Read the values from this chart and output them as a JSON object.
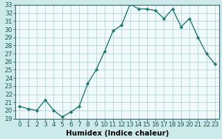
{
  "x": [
    0,
    1,
    2,
    3,
    4,
    5,
    6,
    7,
    8,
    9,
    10,
    11,
    12,
    13,
    14,
    15,
    16,
    17,
    18,
    19,
    20,
    21,
    22,
    23
  ],
  "y": [
    20.5,
    20.2,
    20.0,
    21.3,
    20.0,
    19.2,
    19.8,
    20.5,
    23.3,
    25.0,
    27.3,
    29.8,
    30.5,
    33.1,
    32.5,
    32.5,
    32.3,
    31.3,
    32.5,
    30.3,
    31.3,
    29.0,
    27.0,
    25.7
  ],
  "line_color": "#1a7a6e",
  "bg_color": "#cdeaea",
  "grid_color": "#aed4d4",
  "plot_bg": "#f0fafa",
  "xlabel": "Humidex (Indice chaleur)",
  "ylim": [
    19,
    33
  ],
  "xlim_min": -0.5,
  "xlim_max": 23.5,
  "yticks": [
    19,
    20,
    21,
    22,
    23,
    24,
    25,
    26,
    27,
    28,
    29,
    30,
    31,
    32,
    33
  ],
  "xticks": [
    0,
    1,
    2,
    3,
    4,
    5,
    6,
    7,
    8,
    9,
    10,
    11,
    12,
    13,
    14,
    15,
    16,
    17,
    18,
    19,
    20,
    21,
    22,
    23
  ],
  "marker": "D",
  "markersize": 2.2,
  "linewidth": 1.0,
  "tick_fontsize": 6.5,
  "xlabel_fontsize": 7.5
}
